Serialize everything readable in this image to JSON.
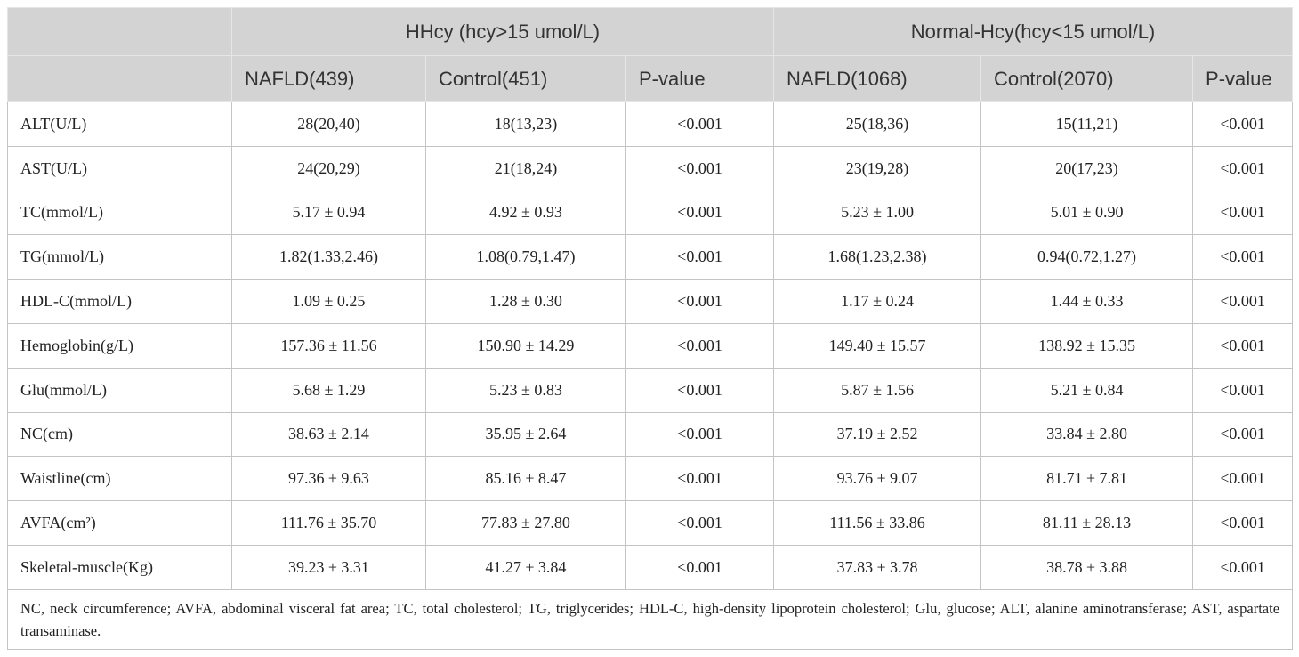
{
  "table": {
    "group_headers": [
      "HHcy (hcy>15 umol/L)",
      "Normal-Hcy(hcy<15 umol/L)"
    ],
    "column_headers": [
      "NAFLD(439)",
      "Control(451)",
      "P-value",
      "NAFLD(1068)",
      "Control(2070)",
      "P-value"
    ],
    "rows": [
      [
        "ALT(U/L)",
        "28(20,40)",
        "18(13,23)",
        "<0.001",
        "25(18,36)",
        "15(11,21)",
        "<0.001"
      ],
      [
        "AST(U/L)",
        "24(20,29)",
        "21(18,24)",
        "<0.001",
        "23(19,28)",
        "20(17,23)",
        "<0.001"
      ],
      [
        "TC(mmol/L)",
        "5.17 ± 0.94",
        "4.92 ± 0.93",
        "<0.001",
        "5.23 ± 1.00",
        "5.01 ± 0.90",
        "<0.001"
      ],
      [
        "TG(mmol/L)",
        "1.82(1.33,2.46)",
        "1.08(0.79,1.47)",
        "<0.001",
        "1.68(1.23,2.38)",
        "0.94(0.72,1.27)",
        "<0.001"
      ],
      [
        "HDL-C(mmol/L)",
        "1.09 ± 0.25",
        "1.28 ± 0.30",
        "<0.001",
        "1.17 ± 0.24",
        "1.44 ± 0.33",
        "<0.001"
      ],
      [
        "Hemoglobin(g/L)",
        "157.36 ± 11.56",
        "150.90 ± 14.29",
        "<0.001",
        "149.40 ± 15.57",
        "138.92 ± 15.35",
        "<0.001"
      ],
      [
        "Glu(mmol/L)",
        "5.68 ± 1.29",
        "5.23 ± 0.83",
        "<0.001",
        "5.87 ± 1.56",
        "5.21 ± 0.84",
        "<0.001"
      ],
      [
        "NC(cm)",
        "38.63 ± 2.14",
        "35.95 ± 2.64",
        "<0.001",
        "37.19 ± 2.52",
        "33.84 ± 2.80",
        "<0.001"
      ],
      [
        "Waistline(cm)",
        "97.36 ± 9.63",
        "85.16 ± 8.47",
        "<0.001",
        "93.76 ± 9.07",
        "81.71 ± 7.81",
        "<0.001"
      ],
      [
        "AVFA(cm²)",
        "111.76 ± 35.70",
        "77.83 ± 27.80",
        "<0.001",
        "111.56 ± 33.86",
        "81.11 ± 28.13",
        "<0.001"
      ],
      [
        "Skeletal-muscle(Kg)",
        "39.23 ± 3.31",
        "41.27 ± 3.84",
        "<0.001",
        "37.83 ± 3.78",
        "38.78 ± 3.88",
        "<0.001"
      ]
    ],
    "footnote": "NC, neck circumference; AVFA, abdominal visceral fat area; TC, total cholesterol; TG, triglycerides; HDL-C, high-density lipoprotein cholesterol; Glu, glucose; ALT, alanine aminotransferase; AST, aspartate transaminase."
  }
}
